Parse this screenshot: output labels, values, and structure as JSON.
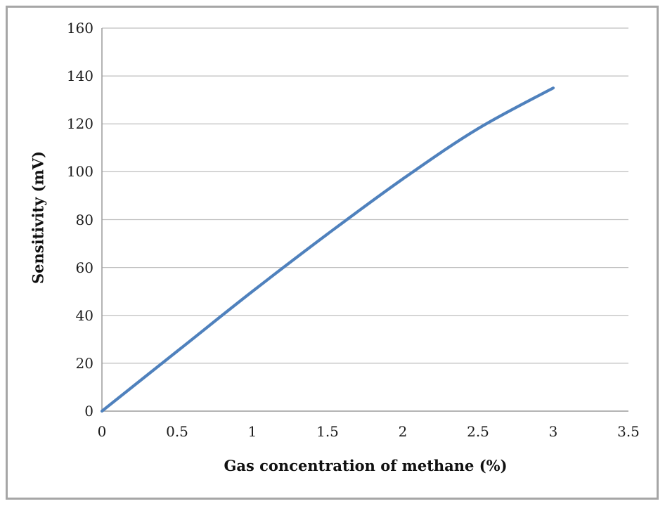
{
  "chart_data": {
    "type": "line",
    "title": "",
    "xlabel": "Gas concentration of methane (%)",
    "ylabel": "Sensitivity (mV)",
    "x": [
      0,
      0.5,
      1,
      1.5,
      2,
      2.5,
      3
    ],
    "values": [
      0,
      25,
      50,
      74,
      97,
      118,
      135
    ],
    "xlim": [
      0,
      3.5
    ],
    "ylim": [
      0,
      160
    ],
    "x_tick_labels": [
      "0",
      "0.5",
      "1",
      "1.5",
      "2",
      "2.5",
      "3",
      "3.5"
    ],
    "y_tick_labels": [
      "0",
      "20",
      "40",
      "60",
      "80",
      "100",
      "120",
      "140",
      "160"
    ],
    "x_tick_values": [
      0,
      0.5,
      1,
      1.5,
      2,
      2.5,
      3,
      3.5
    ],
    "y_tick_values": [
      0,
      20,
      40,
      60,
      80,
      100,
      120,
      140,
      160
    ],
    "grid": "horizontal",
    "legend": "none",
    "smooth": true,
    "line_color": "#4F81BD",
    "gridline_color": "#BFBFBF",
    "axis_color": "#9B9B9B",
    "frame_border_color": "#A6A6A6",
    "text_color": "#1A1A1A"
  }
}
